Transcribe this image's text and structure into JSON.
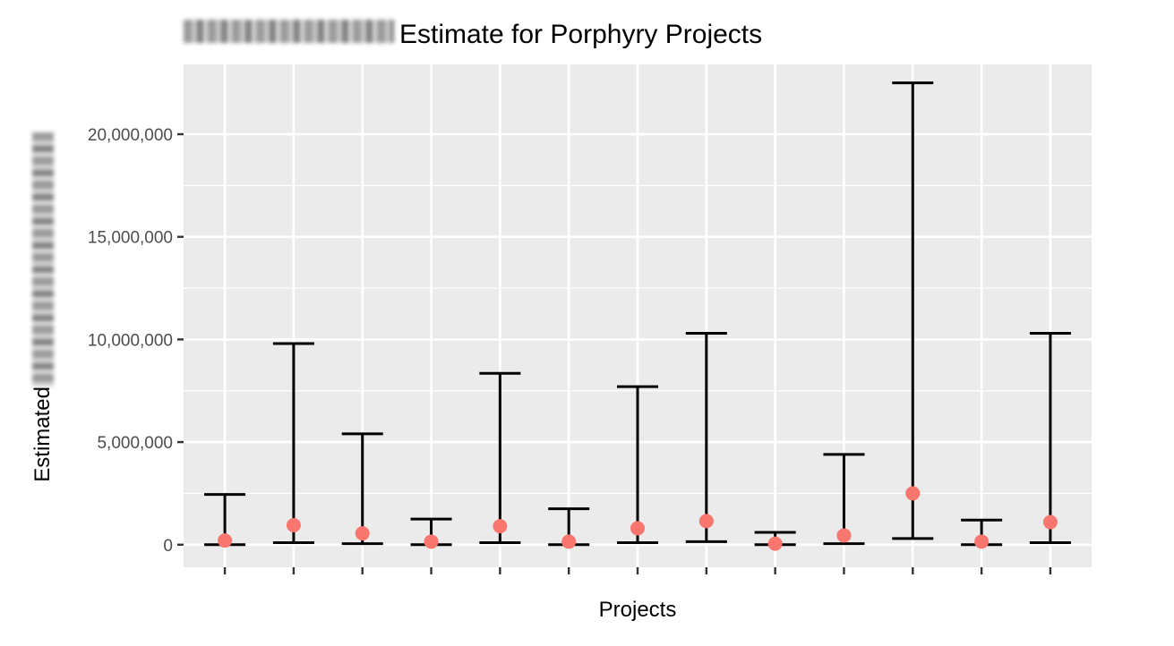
{
  "chart_data": {
    "type": "scatter",
    "title": "Estimate for Porphyry Projects",
    "xlabel": "Projects",
    "ylabel": "Estimated",
    "ylim": [
      -1100000,
      23400000
    ],
    "y_ticks": [
      0,
      5000000,
      10000000,
      15000000,
      20000000
    ],
    "y_tick_labels": [
      "0",
      "5,000,000",
      "10,000,000",
      "15,000,000",
      "20,000,000"
    ],
    "grid": true,
    "colors": {
      "point": "#f8766d",
      "errorbar": "#000000",
      "panel": "#ebebeb",
      "grid": "#ffffff"
    },
    "series": [
      {
        "x": [
          1,
          2,
          3,
          4,
          5,
          6,
          7,
          8,
          9,
          10,
          11,
          12,
          13
        ],
        "estimate": [
          200000,
          950000,
          550000,
          150000,
          900000,
          150000,
          800000,
          1150000,
          50000,
          450000,
          2500000,
          150000,
          1100000
        ],
        "lower": [
          0,
          100000,
          50000,
          0,
          100000,
          0,
          100000,
          150000,
          0,
          50000,
          300000,
          0,
          100000
        ],
        "upper": [
          2450000,
          9800000,
          5400000,
          1250000,
          8350000,
          1750000,
          7700000,
          10300000,
          600000,
          4400000,
          22500000,
          1200000,
          10300000
        ]
      }
    ]
  }
}
